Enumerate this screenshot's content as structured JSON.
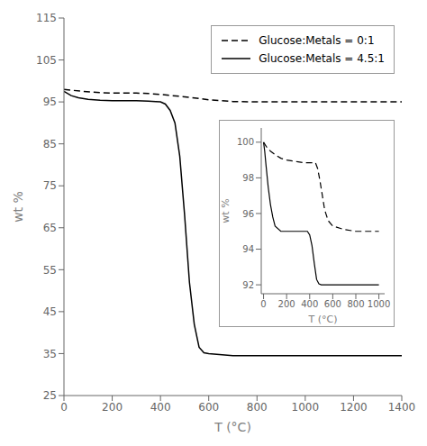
{
  "chart_data": [
    {
      "type": "line",
      "xlabel": "T (°C)",
      "ylabel": "wt %",
      "xlim": [
        0,
        1400
      ],
      "ylim": [
        25,
        115
      ],
      "xticks": [
        0,
        200,
        400,
        600,
        800,
        1000,
        1200,
        1400
      ],
      "yticks": [
        25,
        35,
        45,
        55,
        65,
        75,
        85,
        95,
        105,
        115
      ],
      "legend": "upper right",
      "series": [
        {
          "name": "Glucose:Metals = 0:1",
          "color": "black",
          "line_style": "dashed",
          "x": [
            0,
            30,
            80,
            150,
            200,
            250,
            300,
            350,
            400,
            450,
            500,
            550,
            600,
            650,
            700,
            800,
            900,
            1000,
            1100,
            1200,
            1300,
            1400
          ],
          "values": [
            98.0,
            97.8,
            97.5,
            97.2,
            97.1,
            97.1,
            97.1,
            97.0,
            96.8,
            96.5,
            96.2,
            95.9,
            95.5,
            95.3,
            95.1,
            95.0,
            95.0,
            95.0,
            95.0,
            95.0,
            95.0,
            95.0
          ]
        },
        {
          "name": "Glucose:Metals = 4.5:1",
          "color": "black",
          "line_style": "solid",
          "x": [
            0,
            30,
            60,
            100,
            150,
            200,
            250,
            300,
            350,
            380,
            400,
            420,
            440,
            460,
            480,
            500,
            520,
            540,
            560,
            580,
            600,
            700,
            800,
            900,
            1000,
            1100,
            1200,
            1300,
            1400
          ],
          "values": [
            97.5,
            96.5,
            96.0,
            95.6,
            95.4,
            95.3,
            95.3,
            95.3,
            95.2,
            95.1,
            95.0,
            94.5,
            93.0,
            90.0,
            82.0,
            68.0,
            52.0,
            42.0,
            36.5,
            35.2,
            35.0,
            34.5,
            34.5,
            34.5,
            34.5,
            34.5,
            34.5,
            34.5,
            34.5
          ]
        }
      ]
    },
    {
      "type": "line",
      "xlabel": "T (°C)",
      "ylabel": "wt %",
      "xlim": [
        -20,
        1050
      ],
      "ylim": [
        91.5,
        100.8
      ],
      "xticks": [
        0,
        200,
        400,
        600,
        800,
        1000
      ],
      "yticks": [
        92,
        94,
        96,
        98,
        100
      ],
      "series": [
        {
          "color": "black",
          "line_style": "dashed",
          "x": [
            0,
            30,
            60,
            100,
            150,
            200,
            250,
            300,
            350,
            380,
            400,
            430,
            450,
            470,
            490,
            510,
            530,
            560,
            600,
            700,
            800,
            900,
            1000
          ],
          "values": [
            100.0,
            99.7,
            99.5,
            99.3,
            99.1,
            99.0,
            98.95,
            98.9,
            98.85,
            98.85,
            98.85,
            98.85,
            98.85,
            98.5,
            97.8,
            97.0,
            96.2,
            95.6,
            95.3,
            95.1,
            95.0,
            95.0,
            95.0
          ]
        },
        {
          "color": "black",
          "line_style": "solid",
          "x": [
            0,
            10,
            20,
            40,
            60,
            80,
            100,
            150,
            200,
            250,
            300,
            350,
            380,
            400,
            420,
            440,
            460,
            480,
            500,
            600,
            700,
            800,
            900,
            1000
          ],
          "values": [
            100.0,
            99.5,
            98.8,
            97.5,
            96.5,
            95.8,
            95.3,
            95.0,
            95.0,
            95.0,
            95.0,
            95.0,
            95.0,
            94.8,
            94.2,
            93.2,
            92.3,
            92.05,
            92.0,
            92.0,
            92.0,
            92.0,
            92.0,
            92.0
          ]
        }
      ]
    }
  ]
}
